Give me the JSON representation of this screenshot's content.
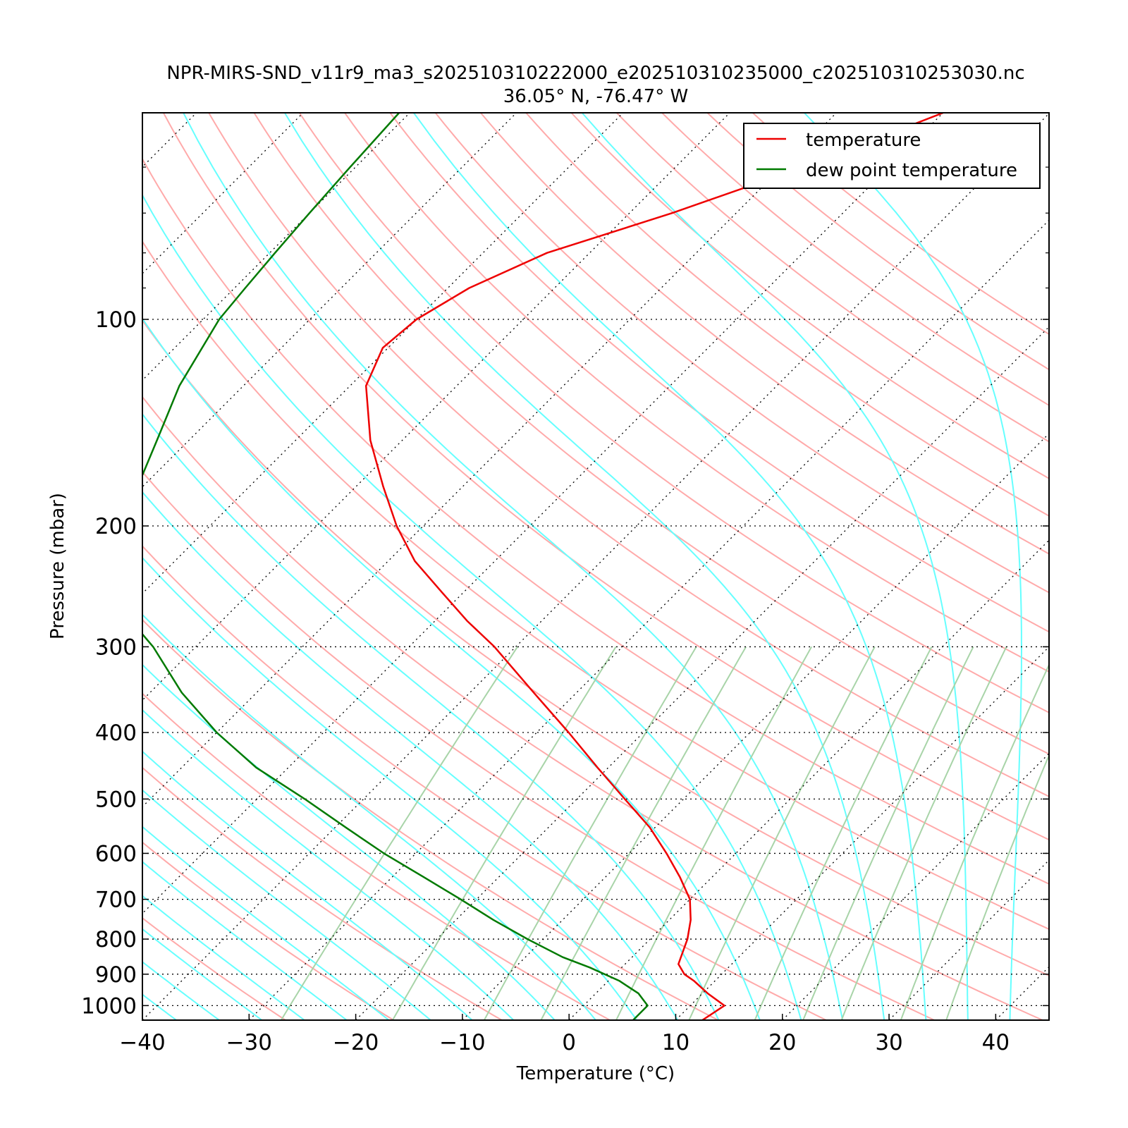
{
  "chart_data": {
    "type": "line",
    "title": "NPR-MIRS-SND_v11r9_ma3_s202510310222000_e202510310235000_c202510310253030.nc",
    "subtitle": "36.05° N, -76.47° W",
    "xlabel": "Temperature (°C)",
    "ylabel": "Pressure (mbar)",
    "xlim": [
      -40,
      45
    ],
    "ylim": [
      1050,
      50
    ],
    "yscale": "log",
    "skew_deg": 45,
    "x_ticks": [
      -40,
      -30,
      -20,
      -10,
      0,
      10,
      20,
      30,
      40
    ],
    "x_tick_labels": [
      "−40",
      "−30",
      "−20",
      "−10",
      "0",
      "10",
      "20",
      "30",
      "40"
    ],
    "y_ticks": [
      100,
      200,
      300,
      400,
      500,
      600,
      700,
      800,
      900,
      1000
    ],
    "y_tick_labels": [
      "100",
      "200",
      "300",
      "400",
      "500",
      "600",
      "700",
      "800",
      "900",
      "1000"
    ],
    "legend_position": "upper-right",
    "grid": true,
    "colors": {
      "temperature": "#ee0000",
      "dewpoint": "#007a00",
      "dry_adiabat": "#ffaaaa",
      "moist_adiabat": "#66ffff",
      "mixing_ratio": "#a8d4a8",
      "isotherm": "#000000"
    },
    "series": [
      {
        "name": "temperature",
        "pressure": [
          1050,
          1000,
          960,
          920,
          900,
          870,
          800,
          750,
          700,
          650,
          600,
          550,
          500,
          450,
          400,
          350,
          300,
          275,
          250,
          225,
          200,
          175,
          150,
          125,
          110,
          100,
          90,
          80,
          70,
          60,
          50
        ],
        "temperature": [
          12.5,
          13.2,
          10.5,
          8.0,
          6.5,
          5.0,
          3.5,
          2.0,
          0.0,
          -3.0,
          -6.5,
          -10.5,
          -15.5,
          -21.0,
          -27.0,
          -34.0,
          -42.0,
          -47.0,
          -52.0,
          -57.5,
          -62.5,
          -67.5,
          -73.0,
          -78.5,
          -80.5,
          -80.0,
          -78.0,
          -74.0,
          -66.0,
          -58.0,
          -50.0
        ]
      },
      {
        "name": "dew point temperature",
        "pressure": [
          1050,
          1000,
          960,
          920,
          880,
          850,
          800,
          750,
          700,
          650,
          600,
          550,
          500,
          450,
          400,
          350,
          300,
          275,
          250,
          225,
          200,
          175,
          150,
          125,
          100,
          90,
          80,
          70,
          60,
          50
        ],
        "temperature": [
          6.0,
          6.0,
          4.0,
          1.0,
          -3.0,
          -6.5,
          -11.5,
          -16.5,
          -21.5,
          -27.0,
          -33.0,
          -39.0,
          -45.5,
          -53.0,
          -60.0,
          -67.0,
          -74.0,
          -78.5,
          -82.0,
          -85.0,
          -88.0,
          -90.5,
          -93.0,
          -96.0,
          -98.5,
          -99.0,
          -99.5,
          -100.0,
          -100.5,
          -101.0
        ]
      }
    ]
  }
}
